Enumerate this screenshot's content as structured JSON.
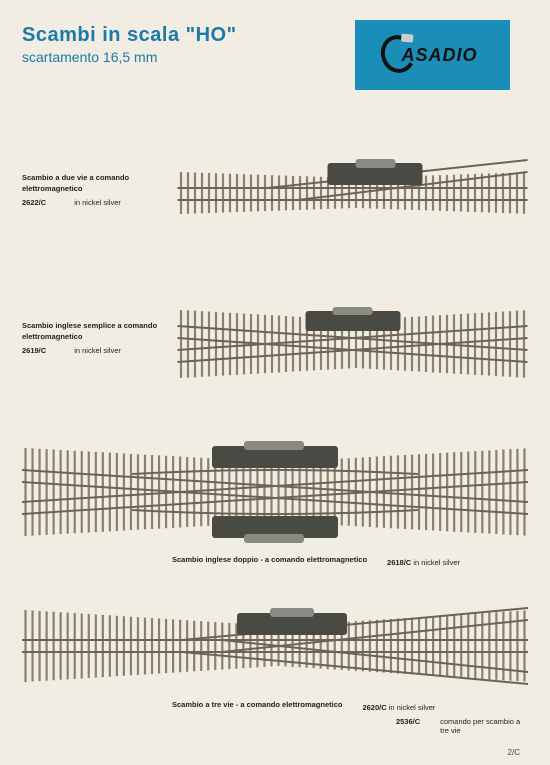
{
  "header": {
    "title": "Scambi in scala \"HO\"",
    "subtitle": "scartamento 16,5 mm",
    "logo_text": "ASADIO"
  },
  "colors": {
    "background": "#f2ede2",
    "accent": "#1a7aa8",
    "logo_bg": "#1a8db8",
    "ink": "#222222",
    "rail_light": "#c8c4ba",
    "rail_dark": "#6b6456",
    "tie": "#888070",
    "motor_body": "#4a4a44",
    "motor_top": "#8a8a82"
  },
  "items": [
    {
      "layout": "side",
      "desc": "Scambio a due vie a comando elettromagnetico",
      "code": "2622/C",
      "material": "in nickel silver",
      "track_type": "turnout_2way"
    },
    {
      "layout": "side",
      "desc": "Scambio inglese semplice a comando elettromagnetico",
      "code": "2619/C",
      "material": "in nickel silver",
      "track_type": "slip_single"
    },
    {
      "layout": "stack",
      "desc": "Scambio inglese doppio - a comando elettromagnetico",
      "code": "2618/C",
      "material": "in nickel silver",
      "track_type": "slip_double"
    },
    {
      "layout": "stack",
      "desc": "Scambio a tre vie - a comando elettromagnetico",
      "code": "2620/C",
      "material": "in nickel silver",
      "code2": "2536/C",
      "material2": "comando per scambio a tre vie",
      "track_type": "turnout_3way"
    }
  ],
  "page_number": "2/C"
}
